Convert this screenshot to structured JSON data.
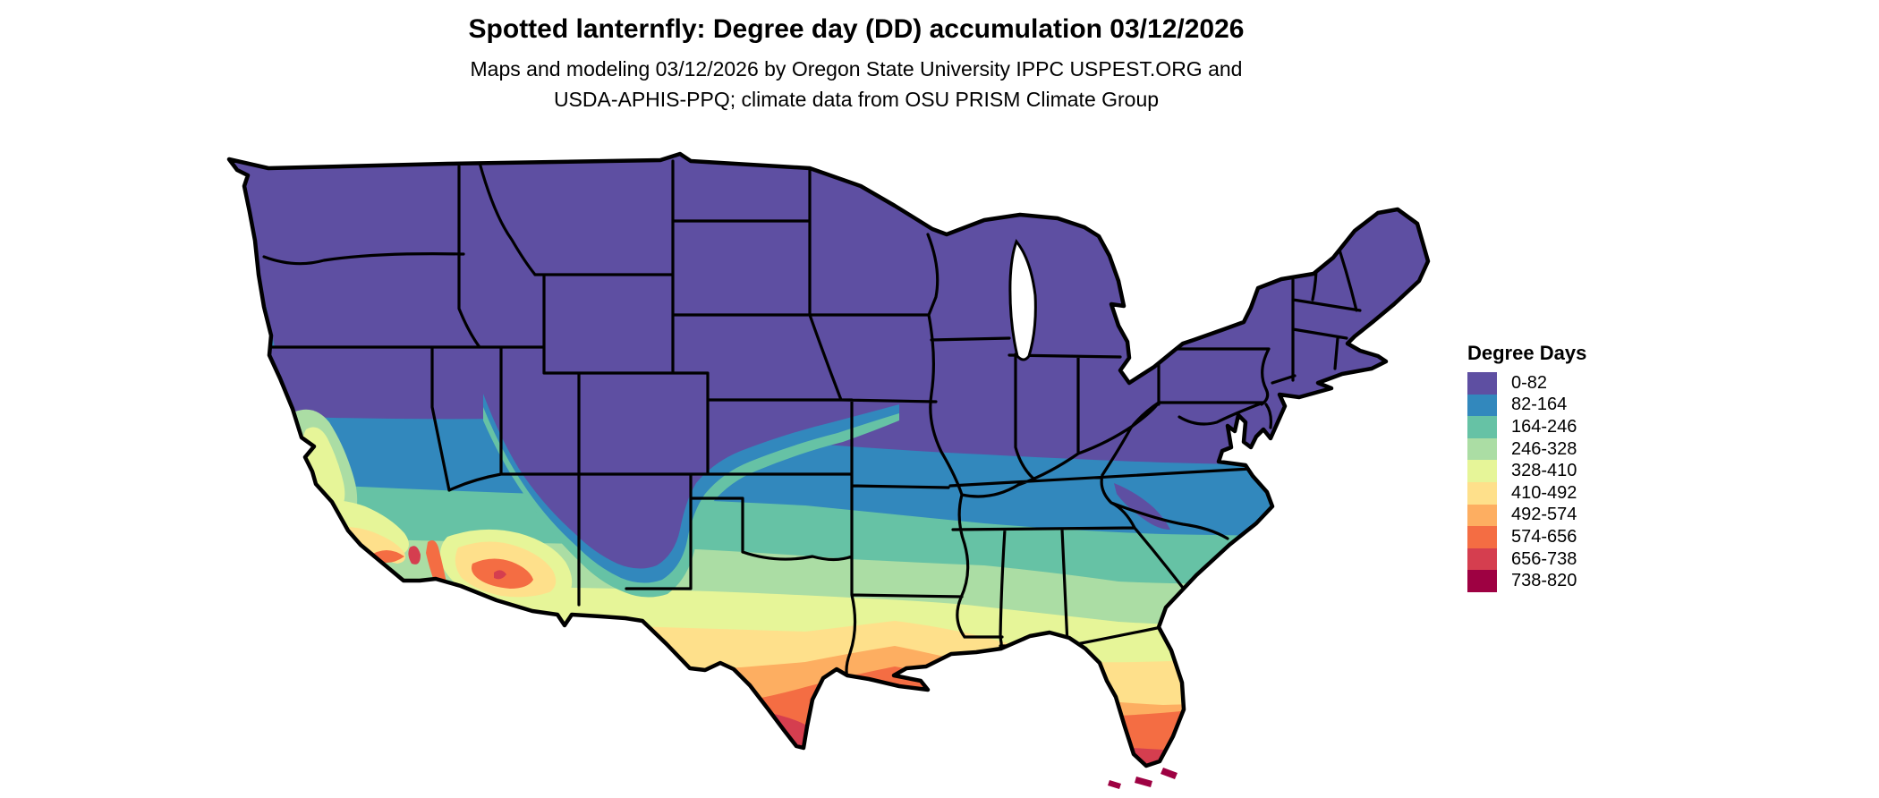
{
  "header": {
    "title": "Spotted lanternfly: Degree day (DD) accumulation 03/12/2026",
    "subtitle_line1": "Maps and modeling 03/12/2026 by Oregon State University IPPC USPEST.ORG and",
    "subtitle_line2": "USDA-APHIS-PPQ; climate data from OSU PRISM Climate Group"
  },
  "legend": {
    "title": "Degree Days",
    "classes": [
      {
        "label": "0-82",
        "color": "#5e4fa2"
      },
      {
        "label": "82-164",
        "color": "#3288bd"
      },
      {
        "label": "164-246",
        "color": "#66c2a5"
      },
      {
        "label": "246-328",
        "color": "#abdda4"
      },
      {
        "label": "328-410",
        "color": "#e6f598"
      },
      {
        "label": "410-492",
        "color": "#fee08b"
      },
      {
        "label": "492-574",
        "color": "#fdae61"
      },
      {
        "label": "574-656",
        "color": "#f46d43"
      },
      {
        "label": "656-738",
        "color": "#d53e4f"
      },
      {
        "label": "738-820",
        "color": "#9e0142"
      }
    ]
  },
  "chart_data": {
    "type": "heatmap",
    "subtype": "choropleth_degree_day_map",
    "geography": "Continental United States with state boundaries",
    "variable": "Spotted lanternfly degree day (DD) accumulation",
    "date": "03/12/2026",
    "unit": "degree days",
    "legend_title": "Degree Days",
    "bins": [
      {
        "range": "0-82",
        "color": "#5e4fa2"
      },
      {
        "range": "82-164",
        "color": "#3288bd"
      },
      {
        "range": "164-246",
        "color": "#66c2a5"
      },
      {
        "range": "246-328",
        "color": "#abdda4"
      },
      {
        "range": "328-410",
        "color": "#e6f598"
      },
      {
        "range": "410-492",
        "color": "#fee08b"
      },
      {
        "range": "492-574",
        "color": "#fdae61"
      },
      {
        "range": "574-656",
        "color": "#f46d43"
      },
      {
        "range": "656-738",
        "color": "#d53e4f"
      },
      {
        "range": "738-820",
        "color": "#9e0142"
      }
    ],
    "spatial_pattern": [
      "Northern half of US (Pacific NW through Rockies, Plains, Midwest, Northeast) in lowest class 0-82",
      "Interior west (NV, UT, CO, NM highlands) stays 0-82 far south, ringed by 82-164 and 164-246",
      "82-164 band across KY/VA to TN/NC, AR, OK, north TX and NM/AZ mid-elevations",
      "164-246 through TN south, SC, GA north, MS/AL north, central TX",
      "246-410 across Gulf states and central Texas; 410-492 along Gulf coast and north FL",
      "492-656 in south TX, south LA coast, central/south FL and SW Arizona deserts",
      "656-820 at the lower Rio Grande tip of Texas, south Florida and the Florida Keys",
      "California: cool 0-164 north and Sierra, 164-410 Central Valley and coast, 410-738 far south deserts"
    ]
  }
}
